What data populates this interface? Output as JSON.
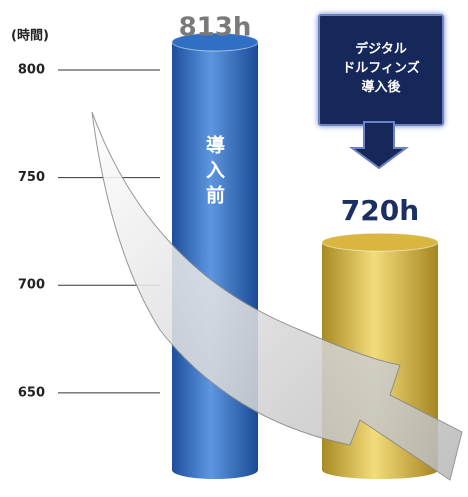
{
  "chart_data": {
    "type": "cylinder-bar",
    "y_axis_title": "(時間)",
    "categories": [
      "導入前",
      "デジタル\nドルフィンズ\n導入後"
    ],
    "values": [
      813,
      720
    ],
    "value_labels": [
      "813h",
      "720h"
    ],
    "colors": [
      "#2f6fc4",
      "#d8b640"
    ],
    "label_colors": [
      "#7a7a7a",
      "#1c2f63"
    ],
    "ylim": [
      610,
      832.5
    ],
    "yticks": [
      650,
      700,
      750,
      800
    ]
  }
}
